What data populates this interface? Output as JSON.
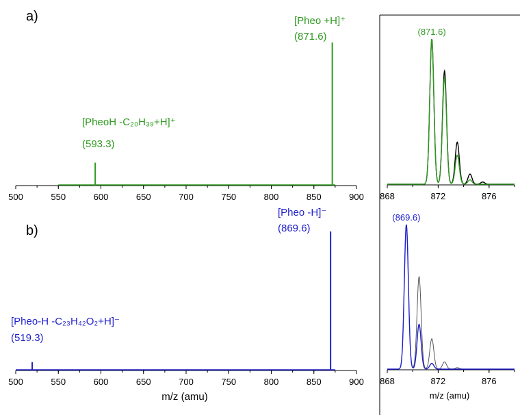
{
  "colors": {
    "green": "#2e9a1f",
    "blue": "#1f1fcc",
    "black": "#000000",
    "gray": "#555555"
  },
  "panels": {
    "a_label": "a)",
    "b_label": "b)"
  },
  "axis": {
    "xlabel": "m/z (amu)",
    "inset_xlabel": "m/z (amu)"
  },
  "chart_data": [
    {
      "id": "a-main",
      "type": "line",
      "xlim": [
        500,
        900
      ],
      "xticks": [
        "500",
        "550",
        "600",
        "650",
        "700",
        "750",
        "800",
        "850",
        "900"
      ],
      "xlabel": "",
      "baseline_range": [
        550,
        875
      ],
      "peaks": [
        {
          "x": 593.3,
          "y": 0.16,
          "label_lines": [
            "[PheoH -C₂₀H₃₉+H]⁺",
            "(593.3)"
          ]
        },
        {
          "x": 871.6,
          "y": 1.0,
          "label_lines": [
            "[Pheo +H]⁺",
            "(871.6)"
          ]
        }
      ]
    },
    {
      "id": "a-inset",
      "type": "line",
      "xlim": [
        868,
        878
      ],
      "xticks": [
        "868",
        "872",
        "876"
      ],
      "annotation": "(871.6)",
      "series": [
        {
          "color": "black",
          "peaks": [
            {
              "x": 871.5,
              "y": 1.0
            },
            {
              "x": 872.5,
              "y": 0.78
            },
            {
              "x": 873.5,
              "y": 0.29
            },
            {
              "x": 874.5,
              "y": 0.07
            },
            {
              "x": 875.5,
              "y": 0.015
            }
          ]
        },
        {
          "color": "green",
          "peaks": [
            {
              "x": 871.5,
              "y": 1.0
            },
            {
              "x": 872.5,
              "y": 0.73
            },
            {
              "x": 873.5,
              "y": 0.2
            },
            {
              "x": 874.5,
              "y": 0.03
            }
          ]
        }
      ]
    },
    {
      "id": "b-main",
      "type": "line",
      "xlim": [
        500,
        900
      ],
      "xticks": [
        "500",
        "550",
        "600",
        "650",
        "700",
        "750",
        "800",
        "850",
        "900"
      ],
      "xlabel": "m/z (amu)",
      "baseline_range": [
        500,
        875
      ],
      "peaks": [
        {
          "x": 519.3,
          "y": 0.06,
          "label_lines": [
            "[Pheo-H -C₂₃H₄₂O₂+H]⁻",
            "(519.3)"
          ]
        },
        {
          "x": 869.6,
          "y": 1.0,
          "label_lines": [
            "[Pheo -H]⁻",
            "(869.6)"
          ]
        }
      ]
    },
    {
      "id": "b-inset",
      "type": "line",
      "xlim": [
        868,
        878
      ],
      "xticks": [
        "868",
        "872",
        "876"
      ],
      "xlabel": "m/z (amu)",
      "annotation": "(869.6)",
      "series": [
        {
          "color": "gray",
          "peaks": [
            {
              "x": 869.5,
              "y": 1.0
            },
            {
              "x": 870.5,
              "y": 0.64
            },
            {
              "x": 871.5,
              "y": 0.21
            },
            {
              "x": 872.5,
              "y": 0.05
            },
            {
              "x": 873.5,
              "y": 0.01
            }
          ]
        },
        {
          "color": "blue",
          "peaks": [
            {
              "x": 869.5,
              "y": 1.0
            },
            {
              "x": 870.5,
              "y": 0.31
            },
            {
              "x": 871.5,
              "y": 0.04
            }
          ]
        }
      ]
    }
  ]
}
